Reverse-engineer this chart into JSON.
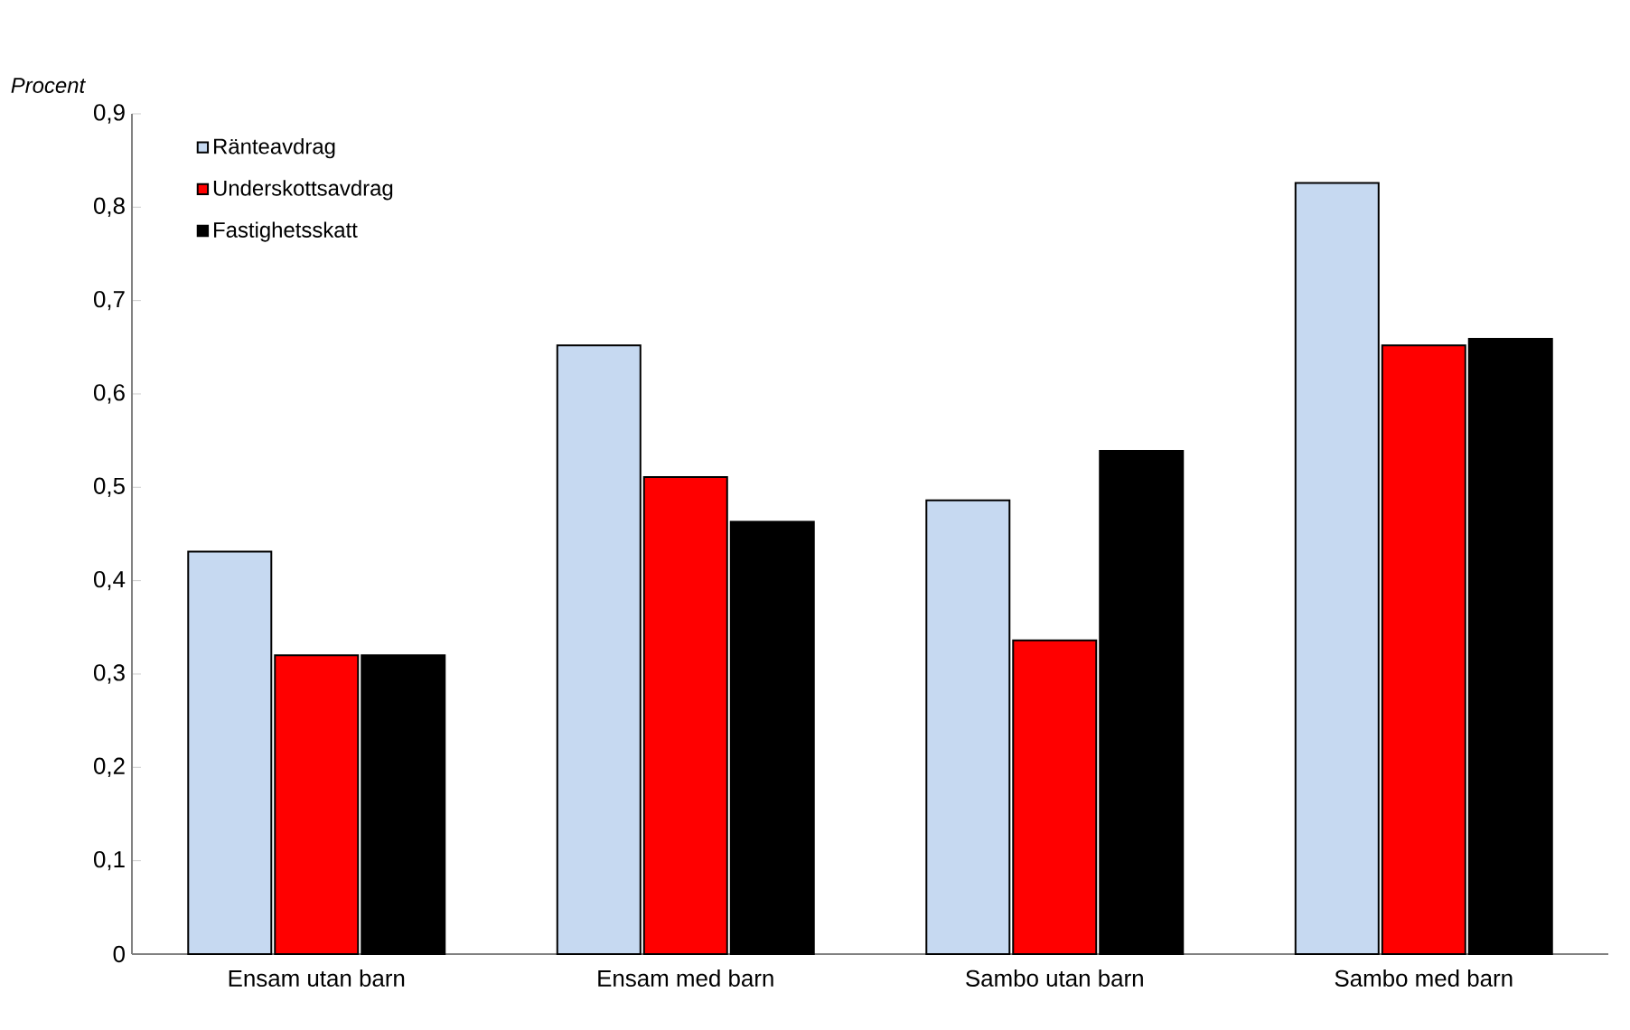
{
  "chart_data": {
    "type": "bar",
    "ylabel": "*Procent*",
    "categories": [
      "Ensam utan barn",
      "Ensam med barn",
      "Sambo utan barn",
      "Sambo med barn"
    ],
    "series": [
      {
        "name": "Ränteavdrag",
        "color": "#c6d9f1",
        "values": [
          0.431,
          0.652,
          0.486,
          0.826
        ]
      },
      {
        "name": "Underskottsavdrag",
        "color": "#ff0000",
        "values": [
          0.32,
          0.511,
          0.336,
          0.652
        ]
      },
      {
        "name": "Fastighetsskatt",
        "color": "#000000",
        "values": [
          0.32,
          0.463,
          0.539,
          0.659
        ]
      }
    ],
    "ylim": [
      0,
      0.9
    ],
    "yticks": [
      {
        "value": 0,
        "label": "0"
      },
      {
        "value": 0.1,
        "label": "0,1"
      },
      {
        "value": 0.2,
        "label": "0,2"
      },
      {
        "value": 0.3,
        "label": "0,3"
      },
      {
        "value": 0.4,
        "label": "0,4"
      },
      {
        "value": 0.5,
        "label": "0,5"
      },
      {
        "value": 0.6,
        "label": "0,6"
      },
      {
        "value": 0.7,
        "label": "0,7"
      },
      {
        "value": 0.8,
        "label": "0,8"
      },
      {
        "value": 0.9,
        "label": "0,9"
      }
    ],
    "grid": false,
    "legend": "top left"
  }
}
